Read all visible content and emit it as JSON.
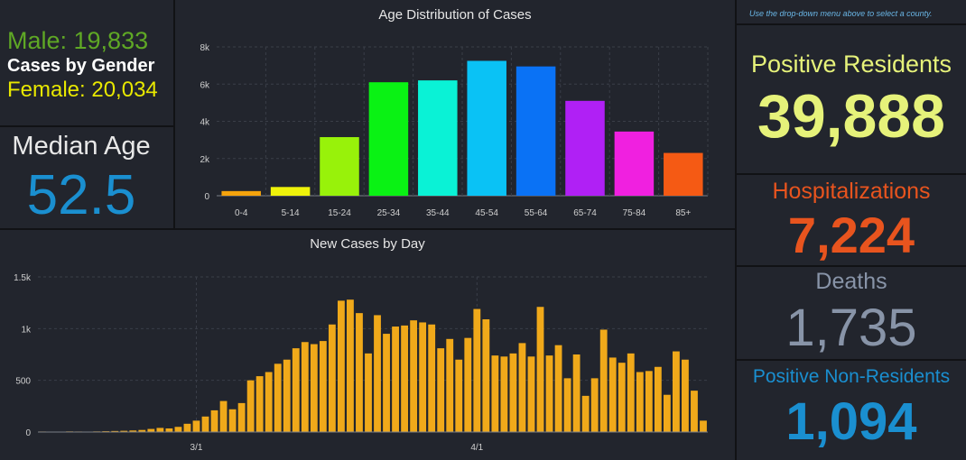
{
  "gender": {
    "male_text": "Male: 19,833",
    "title": "Cases by Gender",
    "female_text": "Female: 20,034"
  },
  "median_age": {
    "label": "Median Age",
    "value": "52.5"
  },
  "note": "Use the drop-down menu above to select a county.",
  "stats": {
    "positive": {
      "label": "Positive Residents",
      "value": "39,888"
    },
    "hospital": {
      "label": "Hospitalizations",
      "value": "7,224"
    },
    "deaths": {
      "label": "Deaths",
      "value": "1,735"
    },
    "nonres": {
      "label": "Positive Non-Residents",
      "value": "1,094"
    }
  },
  "colors": {
    "panel": "#22252d",
    "male": "#5fa825",
    "female": "#e8e800",
    "median": "#1a8fd0",
    "positive": "#e6f27a",
    "hospital": "#e8541e",
    "deaths": "#8894a8",
    "nonres": "#1a8fd0",
    "daily_bar": "#f0a91a"
  },
  "chart_data": [
    {
      "type": "bar",
      "title": "Age Distribution of Cases",
      "categories": [
        "0-4",
        "5-14",
        "15-24",
        "25-34",
        "35-44",
        "45-54",
        "55-64",
        "65-74",
        "75-84",
        "85+"
      ],
      "values": [
        250,
        470,
        3150,
        6100,
        6200,
        7250,
        6950,
        5100,
        3450,
        2300
      ],
      "colors": [
        "#f5a30c",
        "#eef20a",
        "#98f20a",
        "#0af214",
        "#0af2d6",
        "#0ac2f5",
        "#0a72f5",
        "#b020f5",
        "#f020e0",
        "#f55a14"
      ],
      "ylim": [
        0,
        8000
      ],
      "yticks": [
        0,
        2000,
        4000,
        6000,
        8000
      ],
      "ytick_labels": [
        "0",
        "2k",
        "4k",
        "6k",
        "8k"
      ],
      "grid": true
    },
    {
      "type": "bar",
      "title": "New Cases by Day",
      "x_tick_labels": [
        {
          "index": 17,
          "label": "3/1"
        },
        {
          "index": 48,
          "label": "4/1"
        }
      ],
      "values": [
        5,
        3,
        4,
        6,
        5,
        4,
        6,
        8,
        10,
        12,
        15,
        20,
        30,
        40,
        35,
        50,
        80,
        110,
        150,
        210,
        300,
        220,
        280,
        500,
        540,
        580,
        660,
        700,
        810,
        870,
        850,
        880,
        1040,
        1270,
        1280,
        1150,
        760,
        1130,
        950,
        1020,
        1030,
        1080,
        1060,
        1040,
        810,
        900,
        700,
        910,
        1190,
        1090,
        740,
        730,
        760,
        860,
        730,
        1210,
        740,
        840,
        520,
        750,
        350,
        520,
        990,
        720,
        670,
        760,
        580,
        590,
        630,
        360,
        780,
        700,
        400,
        110
      ],
      "ylim": [
        0,
        1500
      ],
      "yticks": [
        0,
        500,
        1000,
        1500
      ],
      "ytick_labels": [
        "0",
        "500",
        "1k",
        "1.5k"
      ],
      "grid": true
    }
  ]
}
